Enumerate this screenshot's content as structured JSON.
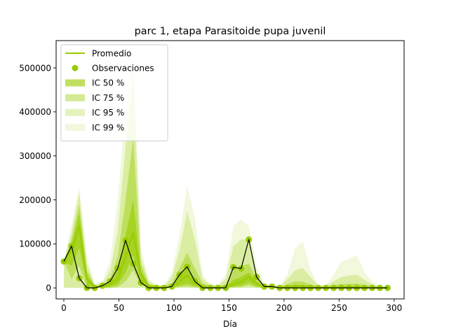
{
  "chart_data": {
    "type": "line",
    "title": "parc 1, etapa Parasitoide pupa juvenil",
    "xlabel": "Día",
    "ylabel": "",
    "xlim": [
      -7,
      309
    ],
    "ylim": [
      -25000,
      562000
    ],
    "xticks": [
      0,
      50,
      100,
      150,
      200,
      250,
      300
    ],
    "yticks": [
      0,
      100000,
      200000,
      300000,
      400000,
      500000
    ],
    "grid": false,
    "legend_position": "top-left",
    "colors": {
      "mean": "#99cc00",
      "observations": "#99cc00",
      "observation_line": "#000000",
      "band_fill": "#99cc00"
    },
    "legend": [
      {
        "label": "Promedio",
        "kind": "line"
      },
      {
        "label": "Observaciones",
        "kind": "marker"
      },
      {
        "label": "IC 50 %",
        "kind": "band",
        "opacity": 0.62
      },
      {
        "label": "IC 75 %",
        "kind": "band",
        "opacity": 0.42
      },
      {
        "label": "IC 95 %",
        "kind": "band",
        "opacity": 0.26
      },
      {
        "label": "IC 99 %",
        "kind": "band",
        "opacity": 0.14
      }
    ],
    "x": [
      0,
      7,
      14,
      21,
      28,
      35,
      42,
      49,
      56,
      63,
      70,
      77,
      84,
      91,
      98,
      105,
      112,
      119,
      126,
      133,
      140,
      147,
      154,
      161,
      168,
      175,
      182,
      189,
      196,
      203,
      210,
      217,
      224,
      231,
      238,
      245,
      252,
      259,
      266,
      273,
      280,
      287,
      294
    ],
    "series": [
      {
        "name": "Observaciones",
        "values": [
          60000,
          95000,
          22000,
          0,
          0,
          5000,
          15000,
          45000,
          108000,
          55000,
          12000,
          0,
          0,
          0,
          3000,
          30000,
          48000,
          15000,
          0,
          0,
          0,
          0,
          47000,
          44000,
          110000,
          25000,
          3000,
          3000,
          0,
          0,
          0,
          0,
          0,
          0,
          0,
          0,
          0,
          0,
          0,
          0,
          0,
          0,
          0
        ]
      },
      {
        "name": "Promedio",
        "values": [
          60000,
          85000,
          140000,
          20000,
          3000,
          2000,
          8000,
          20000,
          70000,
          125000,
          30000,
          5000,
          2000,
          1000,
          3000,
          15000,
          28000,
          12000,
          3000,
          1000,
          1000,
          2000,
          8000,
          14000,
          25000,
          10000,
          3000,
          2000,
          1000,
          2000,
          5000,
          4000,
          2000,
          1000,
          1000,
          1000,
          2000,
          2000,
          2000,
          1000,
          1000,
          0,
          0
        ]
      }
    ],
    "intervals": [
      {
        "name": "IC 99 %",
        "lower": [
          0,
          0,
          0,
          0,
          0,
          0,
          0,
          0,
          0,
          0,
          0,
          0,
          0,
          0,
          0,
          0,
          0,
          0,
          0,
          0,
          0,
          0,
          0,
          0,
          0,
          0,
          0,
          0,
          0,
          0,
          0,
          0,
          0,
          0,
          0,
          0,
          0,
          0,
          0,
          0,
          0,
          0,
          0
        ],
        "upper": [
          60000,
          145000,
          230000,
          70000,
          10000,
          15000,
          60000,
          200000,
          420000,
          530000,
          90000,
          20000,
          8000,
          5000,
          35000,
          120000,
          232000,
          160000,
          30000,
          10000,
          8000,
          30000,
          140000,
          155000,
          140000,
          50000,
          10000,
          6000,
          5000,
          30000,
          90000,
          105000,
          40000,
          8000,
          6000,
          30000,
          60000,
          65000,
          75000,
          35000,
          15000,
          5000,
          3000
        ]
      },
      {
        "name": "IC 95 %",
        "lower": [
          0,
          0,
          0,
          0,
          0,
          0,
          0,
          0,
          0,
          0,
          0,
          0,
          0,
          0,
          0,
          0,
          0,
          0,
          0,
          0,
          0,
          0,
          0,
          0,
          0,
          0,
          0,
          0,
          0,
          0,
          0,
          0,
          0,
          0,
          0,
          0,
          0,
          0,
          0,
          0,
          0,
          0,
          0
        ],
        "upper": [
          60000,
          125000,
          215000,
          55000,
          7000,
          10000,
          40000,
          130000,
          320000,
          480000,
          70000,
          14000,
          6000,
          4000,
          25000,
          85000,
          175000,
          110000,
          20000,
          7000,
          5000,
          20000,
          95000,
          110000,
          110000,
          35000,
          7000,
          5000,
          4000,
          20000,
          40000,
          45000,
          25000,
          5000,
          4000,
          15000,
          25000,
          28000,
          30000,
          18000,
          8000,
          3000,
          2000
        ]
      },
      {
        "name": "IC 75 %",
        "lower": [
          60000,
          20000,
          50000,
          2000,
          0,
          0,
          0,
          2000,
          15000,
          40000,
          5000,
          0,
          0,
          0,
          0,
          2000,
          4000,
          1000,
          0,
          0,
          0,
          0,
          1000,
          2000,
          6000,
          1000,
          0,
          0,
          0,
          0,
          0,
          0,
          0,
          0,
          0,
          0,
          0,
          0,
          0,
          0,
          0,
          0,
          0
        ],
        "upper": [
          60000,
          110000,
          190000,
          40000,
          5000,
          6000,
          22000,
          70000,
          200000,
          340000,
          55000,
          9000,
          4000,
          2500,
          10000,
          45000,
          80000,
          45000,
          10000,
          4000,
          3000,
          8000,
          40000,
          50000,
          55000,
          22000,
          5000,
          3500,
          2500,
          8000,
          15000,
          14000,
          8000,
          3000,
          2500,
          6000,
          9000,
          9000,
          10000,
          7000,
          4000,
          2000,
          1000
        ]
      },
      {
        "name": "IC 50 %",
        "lower": [
          60000,
          50000,
          90000,
          8000,
          1000,
          500,
          2000,
          8000,
          35000,
          75000,
          12000,
          1000,
          500,
          200,
          500,
          5000,
          10000,
          4000,
          500,
          200,
          200,
          500,
          3000,
          5000,
          12000,
          3000,
          500,
          300,
          200,
          300,
          500,
          500,
          300,
          100,
          100,
          100,
          200,
          200,
          200,
          100,
          100,
          0,
          0
        ],
        "upper": [
          60000,
          100000,
          170000,
          30000,
          4000,
          4000,
          14000,
          40000,
          120000,
          200000,
          40000,
          7000,
          3000,
          1800,
          6000,
          28000,
          45000,
          22000,
          6000,
          2500,
          2000,
          4000,
          18000,
          25000,
          35000,
          15000,
          4000,
          2500,
          1800,
          4000,
          7000,
          6000,
          4000,
          1800,
          1500,
          2500,
          3500,
          3500,
          3500,
          2500,
          1800,
          800,
          400
        ]
      }
    ]
  }
}
